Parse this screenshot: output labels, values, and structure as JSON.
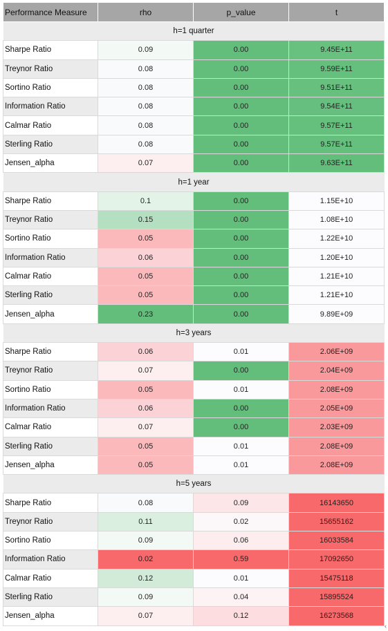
{
  "header": {
    "col_measure": "Performance Measure",
    "col_rho": "rho",
    "col_p": "p_value",
    "col_t": "t"
  },
  "colors": {
    "green": "#63be7b",
    "red": "#f8696b",
    "white": "#fcfcff"
  },
  "groups": [
    {
      "label": "h=1 quarter",
      "rows": [
        {
          "measure": "Sharpe Ratio",
          "rho": "0.09",
          "p": "0.00",
          "t": "9.45E+11",
          "rho_bg": "#f3f9f5",
          "p_bg": "#63be7b",
          "t_bg": "#69c180"
        },
        {
          "measure": "Treynor Ratio",
          "rho": "0.08",
          "p": "0.00",
          "t": "9.59E+11",
          "rho_bg": "#f8fafb",
          "p_bg": "#63be7b",
          "t_bg": "#65bf7d"
        },
        {
          "measure": "Sortino Ratio",
          "rho": "0.08",
          "p": "0.00",
          "t": "9.51E+11",
          "rho_bg": "#f8fafb",
          "p_bg": "#63be7b",
          "t_bg": "#67c07e"
        },
        {
          "measure": "Information Ratio",
          "rho": "0.08",
          "p": "0.00",
          "t": "9.54E+11",
          "rho_bg": "#f8fafb",
          "p_bg": "#63be7b",
          "t_bg": "#66bf7e"
        },
        {
          "measure": "Calmar Ratio",
          "rho": "0.08",
          "p": "0.00",
          "t": "9.57E+11",
          "rho_bg": "#f8fafb",
          "p_bg": "#63be7b",
          "t_bg": "#65bf7d"
        },
        {
          "measure": "Sterling Ratio",
          "rho": "0.08",
          "p": "0.00",
          "t": "9.57E+11",
          "rho_bg": "#f8fafb",
          "p_bg": "#63be7b",
          "t_bg": "#65bf7d"
        },
        {
          "measure": "Jensen_alpha",
          "rho": "0.07",
          "p": "0.00",
          "t": "9.63E+11",
          "rho_bg": "#fdeef0",
          "p_bg": "#63be7b",
          "t_bg": "#63be7b"
        }
      ]
    },
    {
      "label": "h=1 year",
      "rows": [
        {
          "measure": "Sharpe Ratio",
          "rho": "0.1",
          "p": "0.00",
          "t": "1.15E+10",
          "rho_bg": "#e4f3e8",
          "p_bg": "#63be7b",
          "t_bg": "#fcfcff"
        },
        {
          "measure": "Treynor Ratio",
          "rho": "0.15",
          "p": "0.00",
          "t": "1.08E+10",
          "rho_bg": "#b4dfc0",
          "p_bg": "#63be7b",
          "t_bg": "#fcfcff"
        },
        {
          "measure": "Sortino Ratio",
          "rho": "0.05",
          "p": "0.00",
          "t": "1.22E+10",
          "rho_bg": "#fbb9bb",
          "p_bg": "#63be7b",
          "t_bg": "#fcfcff"
        },
        {
          "measure": "Information Ratio",
          "rho": "0.06",
          "p": "0.00",
          "t": "1.20E+10",
          "rho_bg": "#fbd3d6",
          "p_bg": "#63be7b",
          "t_bg": "#fcfcff"
        },
        {
          "measure": "Calmar Ratio",
          "rho": "0.05",
          "p": "0.00",
          "t": "1.21E+10",
          "rho_bg": "#fbb9bb",
          "p_bg": "#63be7b",
          "t_bg": "#fcfcff"
        },
        {
          "measure": "Sterling Ratio",
          "rho": "0.05",
          "p": "0.00",
          "t": "1.21E+10",
          "rho_bg": "#fbb9bb",
          "p_bg": "#63be7b",
          "t_bg": "#fcfcff"
        },
        {
          "measure": "Jensen_alpha",
          "rho": "0.23",
          "p": "0.00",
          "t": "9.89E+09",
          "rho_bg": "#63be7b",
          "p_bg": "#63be7b",
          "t_bg": "#fcfcff"
        }
      ]
    },
    {
      "label": "h=3 years",
      "rows": [
        {
          "measure": "Sharpe Ratio",
          "rho": "0.06",
          "p": "0.01",
          "t": "2.06E+09",
          "rho_bg": "#fbd3d6",
          "p_bg": "#fcfcff",
          "t_bg": "#f9999b"
        },
        {
          "measure": "Treynor Ratio",
          "rho": "0.07",
          "p": "0.00",
          "t": "2.04E+09",
          "rho_bg": "#fdeef0",
          "p_bg": "#63be7b",
          "t_bg": "#f9999b"
        },
        {
          "measure": "Sortino Ratio",
          "rho": "0.05",
          "p": "0.01",
          "t": "2.08E+09",
          "rho_bg": "#fbb9bb",
          "p_bg": "#fcfcff",
          "t_bg": "#f9999b"
        },
        {
          "measure": "Information Ratio",
          "rho": "0.06",
          "p": "0.00",
          "t": "2.05E+09",
          "rho_bg": "#fbd3d6",
          "p_bg": "#63be7b",
          "t_bg": "#f9999b"
        },
        {
          "measure": "Calmar Ratio",
          "rho": "0.07",
          "p": "0.00",
          "t": "2.03E+09",
          "rho_bg": "#fdeef0",
          "p_bg": "#63be7b",
          "t_bg": "#f9999b"
        },
        {
          "measure": "Sterling Ratio",
          "rho": "0.05",
          "p": "0.01",
          "t": "2.08E+09",
          "rho_bg": "#fbb9bb",
          "p_bg": "#fcfcff",
          "t_bg": "#f9999b"
        },
        {
          "measure": "Jensen_alpha",
          "rho": "0.05",
          "p": "0.01",
          "t": "2.08E+09",
          "rho_bg": "#fbb9bb",
          "p_bg": "#fcfcff",
          "t_bg": "#f9999b"
        }
      ]
    },
    {
      "label": "h=5 years",
      "rows": [
        {
          "measure": "Sharpe Ratio",
          "rho": "0.08",
          "p": "0.09",
          "t": "16143650",
          "rho_bg": "#f8fafb",
          "p_bg": "#fde6e8",
          "t_bg": "#f8696b"
        },
        {
          "measure": "Treynor Ratio",
          "rho": "0.11",
          "p": "0.02",
          "t": "15655162",
          "rho_bg": "#daefe0",
          "p_bg": "#fcf7f9",
          "t_bg": "#f8696b"
        },
        {
          "measure": "Sortino Ratio",
          "rho": "0.09",
          "p": "0.06",
          "t": "16033584",
          "rho_bg": "#f3f9f5",
          "p_bg": "#fdedef",
          "t_bg": "#f8696b"
        },
        {
          "measure": "Information Ratio",
          "rho": "0.02",
          "p": "0.59",
          "t": "17092650",
          "rho_bg": "#f8696b",
          "p_bg": "#f8696b",
          "t_bg": "#f8696b"
        },
        {
          "measure": "Calmar Ratio",
          "rho": "0.12",
          "p": "0.01",
          "t": "15475118",
          "rho_bg": "#d1ebd8",
          "p_bg": "#fcfcff",
          "t_bg": "#f8696b"
        },
        {
          "measure": "Sterling Ratio",
          "rho": "0.09",
          "p": "0.04",
          "t": "15895524",
          "rho_bg": "#f3f9f5",
          "p_bg": "#fdf3f5",
          "t_bg": "#f8696b"
        },
        {
          "measure": "Jensen_alpha",
          "rho": "0.07",
          "p": "0.12",
          "t": "16273568",
          "rho_bg": "#fdeef0",
          "p_bg": "#fddde0",
          "t_bg": "#f8696b"
        }
      ]
    }
  ]
}
